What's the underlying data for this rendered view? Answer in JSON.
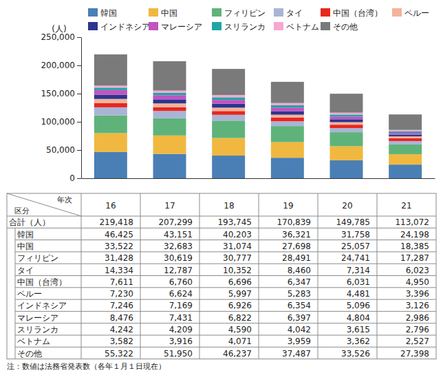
{
  "chart_data": {
    "type": "bar",
    "stacked": true,
    "grid": false,
    "legend": "top",
    "y_label": "(人)",
    "categories": [
      null,
      null,
      null,
      null,
      null,
      null
    ],
    "ylim": [
      0,
      250000
    ],
    "yticks": [
      0,
      {
        "value": 50000,
        "label": "50,000"
      },
      {
        "value": 100000,
        "label": "100,000"
      },
      {
        "value": 150000,
        "label": "150,000"
      },
      {
        "value": 200000,
        "label": "200,000"
      },
      {
        "value": 250000,
        "label": "250,000"
      }
    ],
    "series": [
      {
        "name": "韓国",
        "color": "#4a7fb5",
        "values": [
          46425,
          43151,
          40203,
          36321,
          31758,
          24198
        ]
      },
      {
        "name": "中国",
        "color": "#f0b840",
        "values": [
          33522,
          32683,
          31074,
          27698,
          25057,
          18385
        ]
      },
      {
        "name": "フィリピン",
        "color": "#5fb37a",
        "values": [
          31428,
          30619,
          30777,
          28491,
          24741,
          17287
        ]
      },
      {
        "name": "タイ",
        "color": "#a9b4d6",
        "values": [
          14334,
          12787,
          10352,
          8460,
          7314,
          6023
        ]
      },
      {
        "name": "中国（台湾）",
        "color": "#e8271d",
        "values": [
          7611,
          6760,
          6696,
          6347,
          6031,
          4950
        ]
      },
      {
        "name": "ペルー",
        "color": "#f3b39a",
        "values": [
          7230,
          6624,
          5997,
          5283,
          4481,
          3396
        ]
      },
      {
        "name": "インドネシア",
        "color": "#2c3590",
        "values": [
          7246,
          7169,
          6926,
          6354,
          5096,
          3126
        ]
      },
      {
        "name": "マレーシア",
        "color": "#c154c1",
        "values": [
          8476,
          7431,
          6822,
          6397,
          4804,
          2986
        ]
      },
      {
        "name": "スリランカ",
        "color": "#1fa5a5",
        "values": [
          4242,
          4209,
          4590,
          4042,
          3615,
          2796
        ]
      },
      {
        "name": "ベトナム",
        "color": "#f5a8d0",
        "values": [
          3582,
          3916,
          4071,
          3959,
          3362,
          2527
        ]
      },
      {
        "name": "その他",
        "color": "#7a7a7a",
        "values": [
          55322,
          51950,
          46237,
          37487,
          33526,
          27398
        ]
      }
    ]
  },
  "table": {
    "header": {
      "corner_top": "年次",
      "corner_bottom": "区分",
      "columns": [
        "16",
        "17",
        "18",
        "19",
        "20",
        "21"
      ]
    },
    "rows": [
      [
        "合計（人）",
        "219,418",
        "207,299",
        "193,745",
        "170,839",
        "149,785",
        "113,072"
      ],
      [
        "韓国",
        "46,425",
        "43,151",
        "40,203",
        "36,321",
        "31,758",
        "24,198"
      ],
      [
        "中国",
        "33,522",
        "32,683",
        "31,074",
        "27,698",
        "25,057",
        "18,385"
      ],
      [
        "フィリピン",
        "31,428",
        "30,619",
        "30,777",
        "28,491",
        "24,741",
        "17,287"
      ],
      [
        "タイ",
        "14,334",
        "12,787",
        "10,352",
        "8,460",
        "7,314",
        "6,023"
      ],
      [
        "中国（台湾）",
        "7,611",
        "6,760",
        "6,696",
        "6,347",
        "6,031",
        "4,950"
      ],
      [
        "ペルー",
        "7,230",
        "6,624",
        "5,997",
        "5,283",
        "4,481",
        "3,396"
      ],
      [
        "インドネシア",
        "7,246",
        "7,169",
        "6,926",
        "6,354",
        "5,096",
        "3,126"
      ],
      [
        "マレーシア",
        "8,476",
        "7,431",
        "6,822",
        "6,397",
        "4,804",
        "2,986"
      ],
      [
        "スリランカ",
        "4,242",
        "4,209",
        "4,590",
        "4,042",
        "3,615",
        "2,796"
      ],
      [
        "ベトナム",
        "3,582",
        "3,916",
        "4,071",
        "3,959",
        "3,362",
        "2,527"
      ],
      [
        "その他",
        "55,322",
        "51,950",
        "46,237",
        "37,487",
        "33,526",
        "27,398"
      ]
    ]
  },
  "note": "注：数値は法務省発表数（各年１月１日現在）"
}
